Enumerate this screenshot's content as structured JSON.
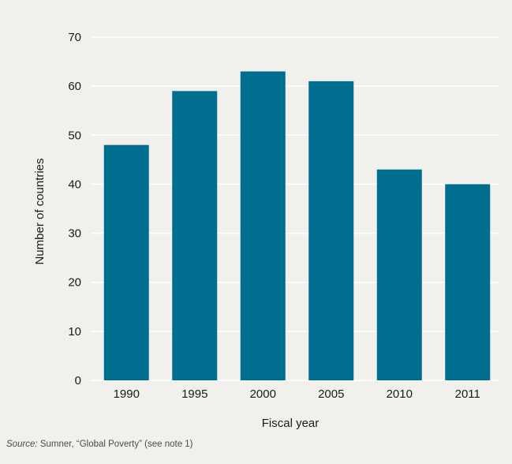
{
  "chart_data": {
    "type": "bar",
    "categories": [
      "1990",
      "1995",
      "2000",
      "2005",
      "2010",
      "2011"
    ],
    "values": [
      48,
      59,
      63,
      61,
      43,
      40
    ],
    "title": "",
    "xlabel": "Fiscal year",
    "ylabel": "Number of countries",
    "ylim": [
      0,
      70
    ],
    "yticks": [
      0,
      10,
      20,
      30,
      40,
      50,
      60,
      70
    ],
    "grid": true,
    "bar_color": "#006f8f",
    "grid_color": "#ffffff",
    "background_color": "#f2f0ec"
  },
  "source": {
    "label": "Source:",
    "text": "Sumner, “Global Poverty” (see note 1)"
  }
}
